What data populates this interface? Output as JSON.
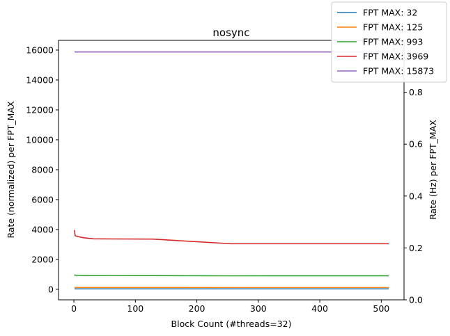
{
  "chart_data": {
    "type": "line",
    "title": "nosync",
    "xlabel": "Block Count (#threads=32)",
    "ylabel": "Rate (normalized) per FPT_MAX",
    "ylabel_right": "Rate (Hz) per FPT_MAX",
    "xlim": [
      -25,
      537
    ],
    "ylim": [
      -700,
      16650
    ],
    "ylim_right": [
      0.0,
      1.0
    ],
    "x_ticks": [
      0,
      100,
      200,
      300,
      400,
      500
    ],
    "y_ticks": [
      0,
      2000,
      4000,
      6000,
      8000,
      10000,
      12000,
      14000,
      16000
    ],
    "y_ticks_right": [
      0.0,
      0.2,
      0.4,
      0.6,
      0.8
    ],
    "legend_position": "top-right",
    "series": [
      {
        "name": "FPT MAX: 32",
        "color": "#1f77b4",
        "x": [
          1,
          2,
          4,
          8,
          16,
          32,
          64,
          128,
          256,
          512
        ],
        "y": [
          32,
          32,
          32,
          32,
          32,
          32,
          32,
          32,
          32,
          32
        ]
      },
      {
        "name": "FPT MAX: 125",
        "color": "#ff7f0e",
        "x": [
          1,
          2,
          4,
          8,
          16,
          32,
          64,
          128,
          256,
          512
        ],
        "y": [
          125,
          124,
          123,
          123,
          122,
          122,
          121,
          121,
          120,
          120
        ]
      },
      {
        "name": "FPT MAX: 993",
        "color": "#2ca02c",
        "x": [
          1,
          2,
          4,
          8,
          16,
          32,
          64,
          128,
          256,
          512
        ],
        "y": [
          993,
          940,
          945,
          942,
          938,
          935,
          928,
          920,
          905,
          910
        ]
      },
      {
        "name": "FPT MAX: 3969",
        "color": "#d62728",
        "x": [
          1,
          2,
          4,
          8,
          16,
          32,
          64,
          128,
          256,
          512
        ],
        "y": [
          3969,
          3590,
          3560,
          3520,
          3450,
          3380,
          3370,
          3360,
          3050,
          3050
        ]
      },
      {
        "name": "FPT MAX: 15873",
        "color": "#9467bd",
        "x": [
          1,
          2,
          4,
          8,
          16,
          32,
          64,
          128,
          256,
          512
        ],
        "y": [
          15873,
          15873,
          15873,
          15873,
          15873,
          15873,
          15873,
          15873,
          15873,
          15873
        ]
      }
    ]
  }
}
